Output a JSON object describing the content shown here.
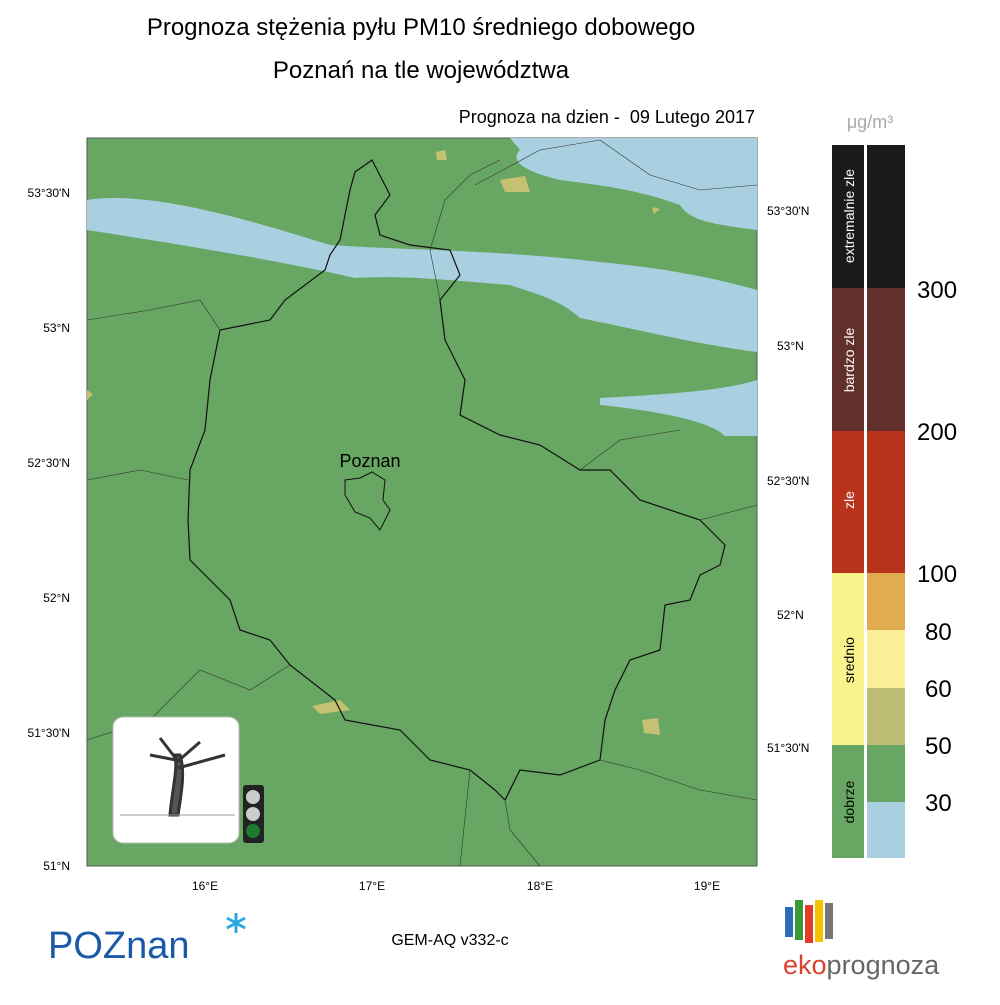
{
  "header": {
    "title": "Prognoza stężenia pyłu PM10 średniego dobowego",
    "subtitle": "Poznań na tle województwa",
    "date": "Prognoza na dzien -  09 Lutego 2017"
  },
  "map": {
    "city_label": "Poznan",
    "left_lat_labels": [
      "53°30'N",
      "53°N",
      "52°30'N",
      "52°N",
      "51°30'N",
      "51°N"
    ],
    "right_lat_labels": [
      "53°30'N",
      "53°N",
      "52°30'N",
      "52°N",
      "51°30'N"
    ],
    "lon_labels": [
      "16°E",
      "17°E",
      "18°E",
      "19°E"
    ]
  },
  "legend": {
    "unit": "μg/m³",
    "categories": [
      "extremalnie zle",
      "bardzo zle",
      "zle",
      "srednio",
      "dobrze"
    ],
    "scale_labels": [
      "300",
      "200",
      "100",
      "80",
      "60",
      "50",
      "30"
    ]
  },
  "footer": {
    "logo_left": "POZnan",
    "model": "GEM-AQ v332-c",
    "logo_right": [
      "eko",
      "prognoza"
    ]
  }
}
